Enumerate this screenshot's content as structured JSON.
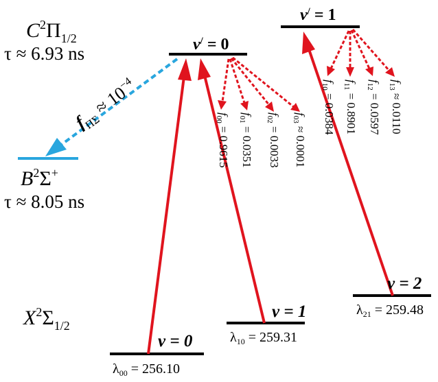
{
  "colors": {
    "pump": "#e0141e",
    "decay": "#e0141e",
    "leak": "#29a6de",
    "level": "#000000"
  },
  "states": {
    "C": {
      "letter": "C",
      "sup": "2",
      "sym": "Π",
      "sub": "1/2",
      "tau": "τ ≈ 6.93 ns"
    },
    "B": {
      "letter": "B",
      "sup": "2",
      "sym": "Σ",
      "sup2": "+",
      "tau": "τ ≈ 8.05 ns"
    },
    "X": {
      "letter": "X",
      "sup": "2",
      "sym": "Σ",
      "sub": "1/2"
    }
  },
  "levels": {
    "c_v0": {
      "v": "v",
      "prime": "/",
      "eq": " = 0"
    },
    "c_v1": {
      "v": "v",
      "prime": "/",
      "eq": " = 1"
    },
    "x_v0": {
      "label": "v = 0",
      "lambda_sub": "00",
      "lambda_val": " = 256.10"
    },
    "x_v1": {
      "label": "v = 1",
      "lambda_sub": "10",
      "lambda_val": " = 259.31"
    },
    "x_v2": {
      "label": "v = 2",
      "lambda_sub": "21",
      "lambda_val": " = 259.48"
    }
  },
  "leak": {
    "f": "f",
    "sub": "ΠΣ",
    "text": " ≈ 10",
    "exp": "−4"
  },
  "franck_condon_v0": [
    {
      "sub": "00",
      "value": " = 0.9615"
    },
    {
      "sub": "01",
      "value": " = 0.0351"
    },
    {
      "sub": "02",
      "value": " = 0.0033"
    },
    {
      "sub": "03",
      "value": " ≈ 0.0001"
    }
  ],
  "franck_condon_v1": [
    {
      "sub": "10",
      "value": " = 0.0384"
    },
    {
      "sub": "11",
      "value": " = 0.8901"
    },
    {
      "sub": "12",
      "value": " = 0.0597"
    },
    {
      "sub": "13",
      "value": " ≈ 0.0110"
    }
  ]
}
